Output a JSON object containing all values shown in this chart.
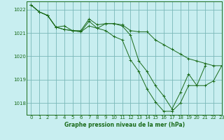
{
  "title": "Graphe pression niveau de la mer (hPa)",
  "bg_color": "#c8eef0",
  "grid_color": "#7ab8b8",
  "line_color": "#1a6b1a",
  "xlim": [
    -0.5,
    23
  ],
  "ylim": [
    1017.5,
    1022.35
  ],
  "xticks": [
    0,
    1,
    2,
    3,
    4,
    5,
    6,
    7,
    8,
    9,
    10,
    11,
    12,
    13,
    14,
    15,
    16,
    17,
    18,
    19,
    20,
    21,
    22,
    23
  ],
  "yticks": [
    1018,
    1019,
    1020,
    1021,
    1022
  ],
  "series": [
    [
      1022.2,
      1021.9,
      1021.75,
      1021.25,
      1021.15,
      1021.1,
      1021.05,
      1021.3,
      1021.2,
      1021.1,
      1020.85,
      1020.7,
      1019.85,
      1019.35,
      1018.6,
      1018.05,
      1017.65,
      1017.65,
      1018.0,
      1018.75,
      1018.75,
      1019.6,
      null,
      null
    ],
    [
      1022.2,
      1021.9,
      1021.75,
      1021.25,
      1021.15,
      1021.1,
      1021.05,
      1021.5,
      1021.2,
      1021.4,
      1021.4,
      1021.3,
      1020.9,
      1019.8,
      1019.35,
      1018.75,
      1018.3,
      1017.75,
      1018.45,
      1019.25,
      1018.75,
      1018.75,
      1018.95,
      1019.6
    ],
    [
      1022.2,
      1021.9,
      1021.75,
      1021.25,
      1021.3,
      1021.1,
      1021.1,
      1021.6,
      1021.35,
      1021.4,
      1021.4,
      1021.35,
      1021.1,
      1021.05,
      1021.05,
      1020.7,
      1020.5,
      1020.3,
      1020.1,
      1019.9,
      1019.8,
      1019.7,
      1019.6,
      1019.6
    ]
  ]
}
